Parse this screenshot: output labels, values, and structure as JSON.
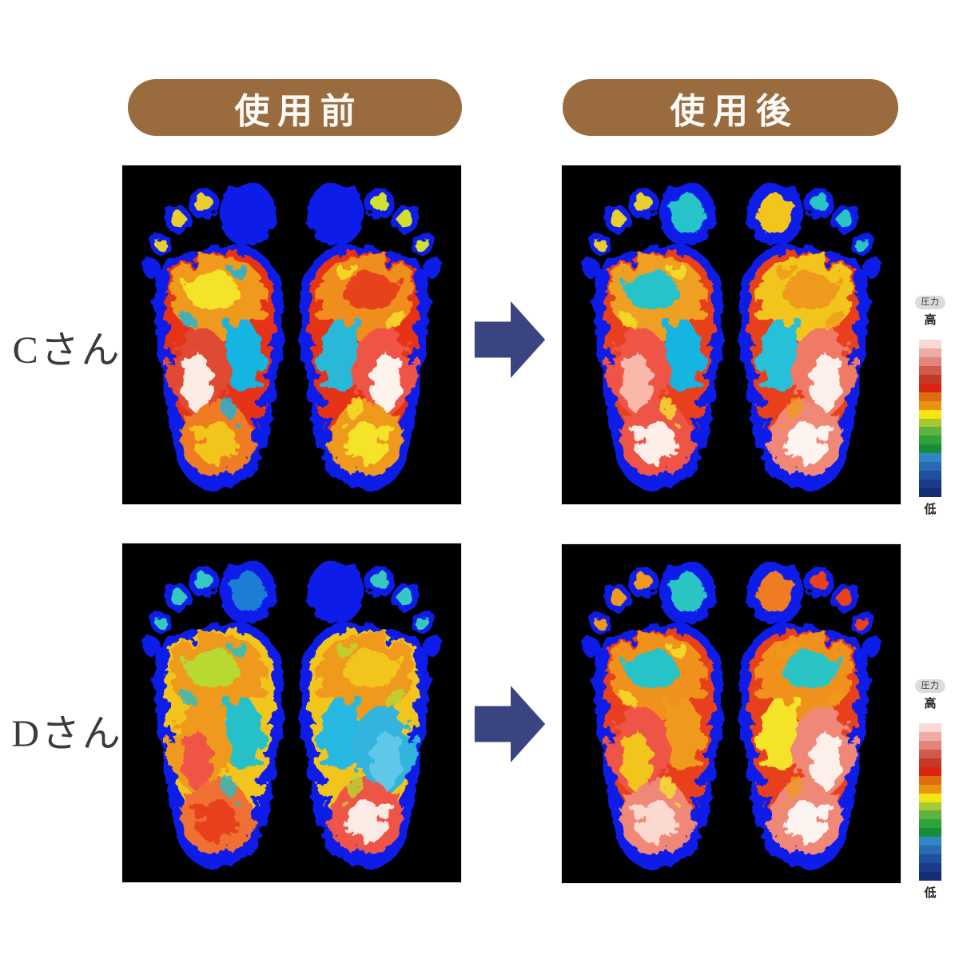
{
  "headers": {
    "before": "使用前",
    "after": "使用後"
  },
  "rows": [
    {
      "id": "c",
      "label": "Cさん"
    },
    {
      "id": "d",
      "label": "Dさん"
    }
  ],
  "panels": [
    {
      "row": "Cさん",
      "state": "使用前"
    },
    {
      "row": "Cさん",
      "state": "使用後"
    },
    {
      "row": "Dさん",
      "state": "使用前"
    },
    {
      "row": "Dさん",
      "state": "使用後"
    }
  ],
  "legend": {
    "title": "圧力",
    "high": "高",
    "low": "低",
    "stops": [
      "#ffffff",
      "#f7d9d6",
      "#efaca6",
      "#e2867d",
      "#d05a4d",
      "#c43828",
      "#d92414",
      "#de6c10",
      "#e99311",
      "#f6e414",
      "#a7c934",
      "#5fb23d",
      "#2ea23b",
      "#178d37",
      "#2f87c9",
      "#2b69b1",
      "#204f9f",
      "#1a3c8a",
      "#142e74"
    ]
  },
  "arrow": {
    "direction": "right",
    "color": "#3a4480"
  },
  "colors": {
    "header_bg": "#9a6b3e",
    "header_text": "#fdfbf7",
    "panel_bg": "#000000",
    "foot_outline_blue": "#0a1ee8",
    "label_text": "#3b3b3b"
  }
}
